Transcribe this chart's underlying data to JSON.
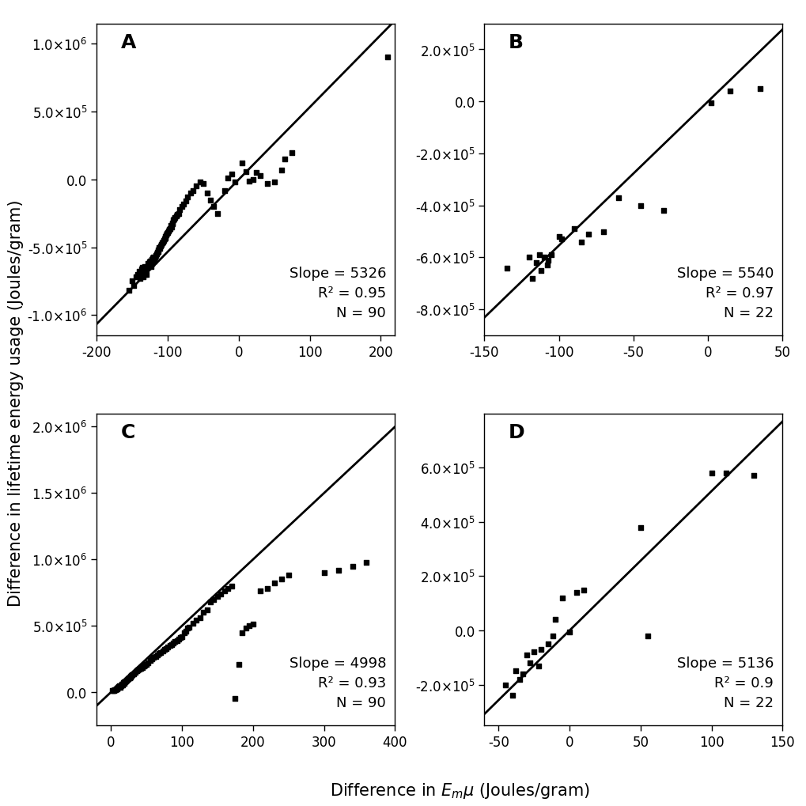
{
  "panels": [
    {
      "label": "A",
      "slope": 5326,
      "r2": 0.95,
      "N": 90,
      "xlim": [
        -200,
        220
      ],
      "ylim": [
        -1150000.0,
        1150000.0
      ],
      "xticks": [
        -200,
        -100,
        0,
        100,
        200
      ],
      "yticks": [
        -1000000.0,
        -500000.0,
        0.0,
        500000.0,
        1000000.0
      ],
      "scatter_x": [
        -155,
        -150,
        -148,
        -145,
        -143,
        -142,
        -140,
        -139,
        -138,
        -137,
        -136,
        -135,
        -134,
        -133,
        -132,
        -131,
        -130,
        -130,
        -128,
        -127,
        -126,
        -125,
        -124,
        -123,
        -122,
        -121,
        -120,
        -119,
        -118,
        -117,
        -116,
        -115,
        -114,
        -113,
        -112,
        -111,
        -110,
        -109,
        -108,
        -107,
        -106,
        -105,
        -104,
        -103,
        -102,
        -101,
        -100,
        -99,
        -98,
        -97,
        -96,
        -95,
        -94,
        -93,
        -92,
        -91,
        -90,
        -88,
        -87,
        -85,
        -83,
        -80,
        -78,
        -75,
        -72,
        -68,
        -65,
        -60,
        -55,
        -50,
        -45,
        -40,
        -35,
        -30,
        -20,
        -15,
        -10,
        -5,
        5,
        10,
        15,
        20,
        25,
        30,
        40,
        50,
        60,
        65,
        75,
        210
      ],
      "scatter_y": [
        -820000,
        -750000,
        -780000,
        -720000,
        -700000,
        -710000,
        -680000,
        -730000,
        -690000,
        -660000,
        -650000,
        -720000,
        -680000,
        -700000,
        -640000,
        -670000,
        -650000,
        -700000,
        -620000,
        -630000,
        -610000,
        -600000,
        -640000,
        -620000,
        -590000,
        -580000,
        -570000,
        -600000,
        -570000,
        -560000,
        -550000,
        -540000,
        -520000,
        -530000,
        -500000,
        -510000,
        -490000,
        -480000,
        -470000,
        -460000,
        -450000,
        -440000,
        -420000,
        -430000,
        -410000,
        -400000,
        -390000,
        -380000,
        -370000,
        -360000,
        -340000,
        -350000,
        -330000,
        -320000,
        -300000,
        -290000,
        -280000,
        -270000,
        -260000,
        -250000,
        -220000,
        -200000,
        -180000,
        -160000,
        -130000,
        -100000,
        -80000,
        -50000,
        -20000,
        -30000,
        -100000,
        -150000,
        -200000,
        -250000,
        -80000,
        10000,
        40000,
        -20000,
        120000,
        60000,
        -10000,
        0,
        50000,
        30000,
        -30000,
        -20000,
        70000,
        150000,
        200000,
        900000
      ]
    },
    {
      "label": "B",
      "slope": 5540,
      "r2": 0.97,
      "N": 22,
      "xlim": [
        -150,
        50
      ],
      "ylim": [
        -900000.0,
        300000.0
      ],
      "xticks": [
        -150,
        -100,
        -50,
        0,
        50
      ],
      "yticks": [
        -800000.0,
        -600000.0,
        -400000.0,
        -200000.0,
        0.0,
        200000.0
      ],
      "scatter_x": [
        -135,
        -120,
        -118,
        -115,
        -113,
        -112,
        -110,
        -108,
        -107,
        -105,
        -100,
        -98,
        -90,
        -85,
        -80,
        -70,
        -60,
        -45,
        -30,
        2,
        15,
        35
      ],
      "scatter_y": [
        -640000,
        -600000,
        -680000,
        -620000,
        -590000,
        -650000,
        -600000,
        -630000,
        -610000,
        -590000,
        -520000,
        -530000,
        -490000,
        -540000,
        -510000,
        -500000,
        -370000,
        -400000,
        -420000,
        -5000,
        40000,
        50000
      ]
    },
    {
      "label": "C",
      "slope": 4998,
      "r2": 0.93,
      "N": 90,
      "xlim": [
        -20,
        400
      ],
      "ylim": [
        -250000.0,
        2100000.0
      ],
      "xticks": [
        0,
        100,
        200,
        300,
        400
      ],
      "yticks": [
        0.0,
        500000.0,
        1000000.0,
        1500000.0,
        2000000.0
      ],
      "scatter_x": [
        2,
        3,
        4,
        5,
        6,
        7,
        8,
        9,
        10,
        11,
        12,
        13,
        14,
        15,
        16,
        17,
        18,
        19,
        20,
        21,
        22,
        23,
        24,
        25,
        26,
        27,
        28,
        29,
        30,
        32,
        34,
        36,
        38,
        40,
        42,
        44,
        46,
        48,
        50,
        52,
        55,
        58,
        60,
        63,
        65,
        68,
        70,
        73,
        75,
        78,
        80,
        83,
        85,
        88,
        90,
        93,
        95,
        98,
        100,
        103,
        105,
        108,
        110,
        115,
        120,
        125,
        130,
        135,
        140,
        145,
        150,
        155,
        160,
        165,
        170,
        175,
        180,
        185,
        190,
        195,
        200,
        210,
        220,
        230,
        240,
        250,
        300,
        320,
        340,
        360
      ],
      "scatter_y": [
        10000,
        15000,
        12000,
        18000,
        20000,
        25000,
        30000,
        22000,
        35000,
        40000,
        45000,
        38000,
        50000,
        60000,
        55000,
        70000,
        75000,
        65000,
        80000,
        85000,
        90000,
        95000,
        100000,
        105000,
        110000,
        115000,
        120000,
        125000,
        130000,
        140000,
        150000,
        160000,
        170000,
        175000,
        180000,
        185000,
        195000,
        200000,
        210000,
        220000,
        240000,
        250000,
        260000,
        270000,
        280000,
        290000,
        300000,
        310000,
        320000,
        330000,
        340000,
        350000,
        360000,
        370000,
        380000,
        390000,
        400000,
        410000,
        420000,
        450000,
        460000,
        480000,
        490000,
        520000,
        540000,
        560000,
        600000,
        620000,
        680000,
        700000,
        720000,
        740000,
        760000,
        780000,
        800000,
        -50000,
        210000,
        450000,
        480000,
        500000,
        510000,
        760000,
        780000,
        820000,
        850000,
        880000,
        900000,
        920000,
        950000,
        980000
      ]
    },
    {
      "label": "D",
      "slope": 5136,
      "r2": 0.9,
      "N": 22,
      "xlim": [
        -60,
        150
      ],
      "ylim": [
        -350000.0,
        800000.0
      ],
      "xticks": [
        -50,
        0,
        50,
        100,
        150
      ],
      "yticks": [
        -200000.0,
        0.0,
        200000.0,
        400000.0,
        600000.0
      ],
      "scatter_x": [
        -45,
        -40,
        -38,
        -35,
        -33,
        -30,
        -28,
        -25,
        -22,
        -20,
        -15,
        -12,
        -10,
        -5,
        0,
        5,
        10,
        50,
        55,
        100,
        110,
        130
      ],
      "scatter_y": [
        -200000,
        -240000,
        -150000,
        -180000,
        -160000,
        -90000,
        -120000,
        -80000,
        -130000,
        -70000,
        -50000,
        -20000,
        40000,
        120000,
        -5000,
        140000,
        150000,
        380000,
        -20000,
        580000,
        580000,
        570000
      ]
    }
  ],
  "xlabel": "Difference in $E_{m}$$\\mu$ (Joules/gram)",
  "ylabel": "Difference in lifetime energy usage (Joules/gram)",
  "annotation_fontsize": 13,
  "label_fontsize": 15,
  "tick_fontsize": 12
}
